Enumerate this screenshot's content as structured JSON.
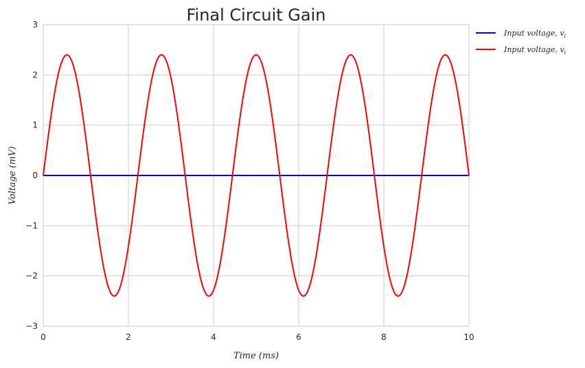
{
  "chart_data": {
    "type": "line",
    "title": "Final Circuit Gain",
    "xlabel": "Time (ms)",
    "ylabel": "Voltage (mV)",
    "xlim": [
      0,
      10
    ],
    "ylim": [
      -3,
      3
    ],
    "xticks": [
      0,
      2,
      4,
      6,
      8,
      10
    ],
    "xtick_labels": [
      "0",
      "2",
      "4",
      "6",
      "8",
      "10"
    ],
    "yticks": [
      3,
      2,
      1,
      0,
      -1,
      -2,
      -3
    ],
    "ytick_labels": [
      "3",
      "2",
      "1",
      "0",
      "−1",
      "−2",
      "−3"
    ],
    "grid": true,
    "legend_position": "outside-top-right",
    "series": [
      {
        "name": "Input voltage, v_i",
        "legend_label": "Input voltage, v",
        "legend_sub": "i",
        "color": "#0000ff",
        "function": "sine",
        "amplitude": 0.0,
        "frequency_khz": 0.45
      },
      {
        "name": "Input voltage, v_i",
        "legend_label": "Input voltage, v",
        "legend_sub": "i",
        "color": "#ff0000",
        "function": "sine",
        "amplitude": 2.4,
        "frequency_khz": 0.45
      }
    ]
  }
}
